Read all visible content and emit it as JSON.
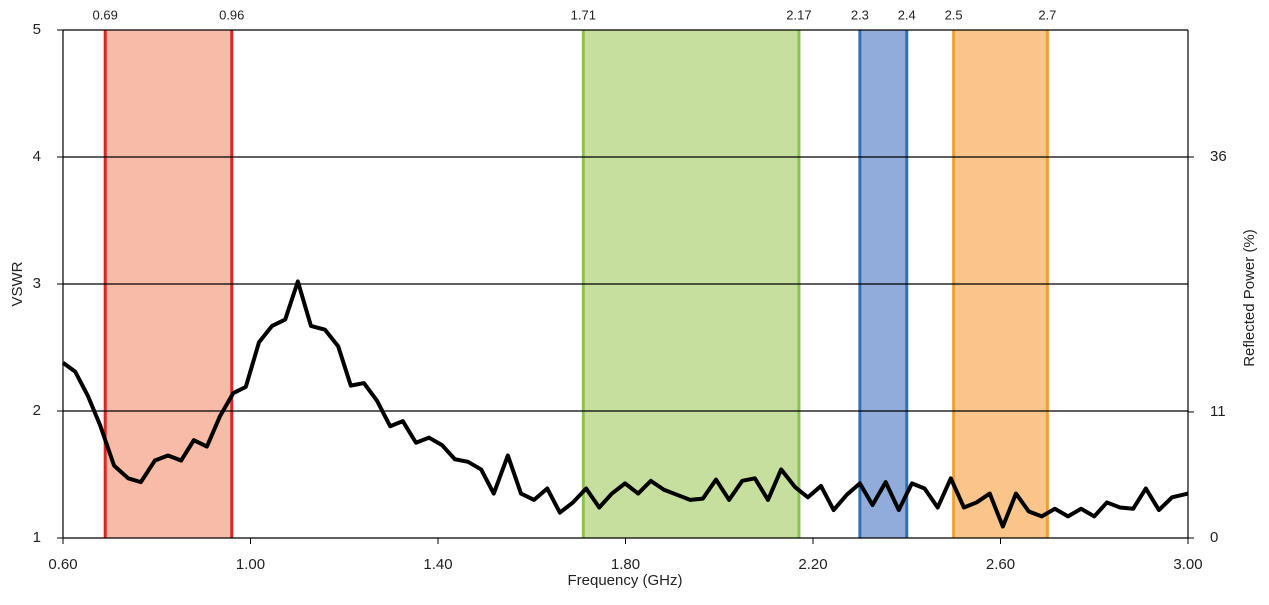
{
  "chart_data": {
    "type": "line",
    "xlabel": "Frequency (GHz)",
    "ylabel": "VSWR",
    "y2label": "Reflected Power (%)",
    "xlim": [
      0.6,
      3.0
    ],
    "xticks": [
      {
        "value": 0.6,
        "label": "0.60"
      },
      {
        "value": 1.0,
        "label": "1.00"
      },
      {
        "value": 1.4,
        "label": "1.40"
      },
      {
        "value": 1.8,
        "label": "1.80"
      },
      {
        "value": 2.2,
        "label": "2.20"
      },
      {
        "value": 2.6,
        "label": "2.60"
      },
      {
        "value": 3.0,
        "label": "3.00"
      }
    ],
    "ylim": [
      1,
      5
    ],
    "yticks": [
      1,
      2,
      3,
      4,
      5
    ],
    "y2lim": [
      0,
      44.4
    ],
    "y2ticks": [
      0,
      11,
      36
    ],
    "y2_scale": "reflected_power_of_vswr",
    "grid": true,
    "bands": [
      {
        "start": 0.69,
        "end": 0.96,
        "color": "#f8bba8",
        "edge_color": "#e02424"
      },
      {
        "start": 1.71,
        "end": 2.17,
        "color": "#c6df9f",
        "edge_color": "#8cc34e"
      },
      {
        "start": 2.3,
        "end": 2.4,
        "color": "#91acdb",
        "edge_color": "#2e72b5"
      },
      {
        "start": 2.5,
        "end": 2.7,
        "color": "#f9c58b",
        "edge_color": "#f0a030"
      }
    ],
    "series": [
      {
        "name": "VSWR",
        "color": "#000000",
        "x": [
          0.6,
          0.626,
          0.653,
          0.679,
          0.709,
          0.739,
          0.766,
          0.796,
          0.824,
          0.852,
          0.879,
          0.907,
          0.935,
          0.963,
          0.99,
          1.018,
          1.046,
          1.074,
          1.101,
          1.129,
          1.159,
          1.187,
          1.214,
          1.242,
          1.27,
          1.298,
          1.325,
          1.353,
          1.381,
          1.409,
          1.436,
          1.464,
          1.492,
          1.519,
          1.549,
          1.577,
          1.605,
          1.633,
          1.66,
          1.688,
          1.716,
          1.744,
          1.771,
          1.799,
          1.827,
          1.854,
          1.882,
          1.91,
          1.938,
          1.965,
          1.993,
          2.021,
          2.049,
          2.076,
          2.104,
          2.132,
          2.162,
          2.189,
          2.217,
          2.244,
          2.272,
          2.3,
          2.327,
          2.355,
          2.383,
          2.411,
          2.438,
          2.466,
          2.494,
          2.522,
          2.549,
          2.577,
          2.605,
          2.633,
          2.66,
          2.688,
          2.716,
          2.744,
          2.772,
          2.8,
          2.827,
          2.855,
          2.883,
          2.91,
          2.938,
          2.966,
          3.0
        ],
        "values": [
          2.38,
          2.31,
          2.12,
          1.89,
          1.57,
          1.47,
          1.44,
          1.61,
          1.65,
          1.61,
          1.77,
          1.72,
          1.96,
          2.14,
          2.19,
          2.54,
          2.67,
          2.72,
          3.02,
          2.67,
          2.64,
          2.51,
          2.2,
          2.22,
          2.08,
          1.88,
          1.92,
          1.75,
          1.79,
          1.73,
          1.62,
          1.6,
          1.54,
          1.35,
          1.65,
          1.35,
          1.3,
          1.39,
          1.2,
          1.28,
          1.39,
          1.24,
          1.35,
          1.43,
          1.35,
          1.45,
          1.38,
          1.34,
          1.3,
          1.31,
          1.46,
          1.3,
          1.45,
          1.47,
          1.3,
          1.54,
          1.4,
          1.32,
          1.41,
          1.22,
          1.34,
          1.43,
          1.26,
          1.44,
          1.22,
          1.43,
          1.39,
          1.24,
          1.47,
          1.24,
          1.28,
          1.35,
          1.09,
          1.35,
          1.21,
          1.17,
          1.23,
          1.17,
          1.23,
          1.17,
          1.28,
          1.24,
          1.23,
          1.39,
          1.22,
          1.32,
          1.35
        ]
      }
    ]
  }
}
